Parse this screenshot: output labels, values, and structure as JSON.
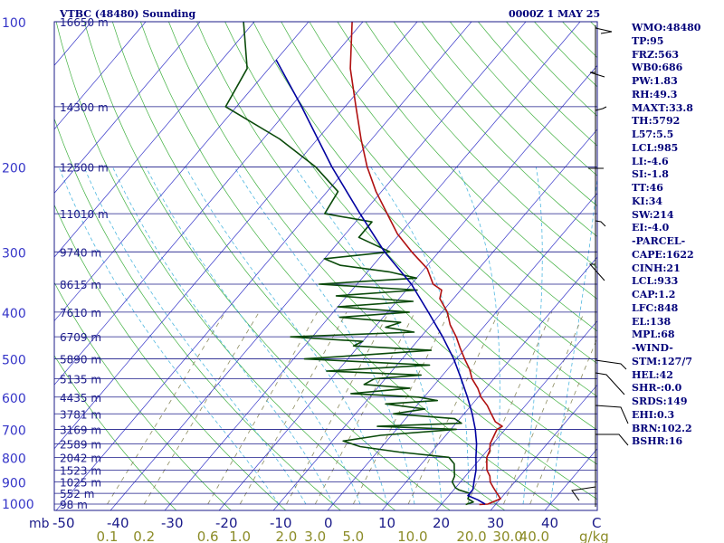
{
  "header": {
    "title": "VTBC (48480) Sounding",
    "time": "0000Z  1 MAY 25"
  },
  "chart_data": {
    "type": "skew-t",
    "pressure_ticks": [
      100,
      200,
      300,
      400,
      500,
      600,
      700,
      800,
      900,
      1000
    ],
    "pressure_unit_label": "mb",
    "temperature_ticks": [
      "-50",
      "-40",
      "-30",
      "-20",
      "-10",
      "0",
      "10",
      "20",
      "30",
      "40"
    ],
    "temperature_unit_label": "C",
    "mixing_ratio_ticks": [
      "0.1",
      "0.2",
      "0.6",
      "1.0",
      "2.0",
      "3.0",
      "5.0",
      "10.0",
      "20.0",
      "30.0",
      "40.0"
    ],
    "mixing_ratio_unit_label": "g/kg",
    "height_labels": [
      {
        "p": 100,
        "label": "16650 m"
      },
      {
        "p": 150,
        "label": "14300 m"
      },
      {
        "p": 200,
        "label": "12500 m"
      },
      {
        "p": 250,
        "label": "11010 m"
      },
      {
        "p": 300,
        "label": "9740 m"
      },
      {
        "p": 350,
        "label": "8615 m"
      },
      {
        "p": 400,
        "label": "7610 m"
      },
      {
        "p": 450,
        "label": "6709 m"
      },
      {
        "p": 500,
        "label": "5890 m"
      },
      {
        "p": 550,
        "label": "5135 m"
      },
      {
        "p": 600,
        "label": "4435 m"
      },
      {
        "p": 650,
        "label": "3781 m"
      },
      {
        "p": 700,
        "label": "3169 m"
      },
      {
        "p": 750,
        "label": "2589 m"
      },
      {
        "p": 800,
        "label": "2042 m"
      },
      {
        "p": 850,
        "label": "1523 m"
      },
      {
        "p": 900,
        "label": "1025 m"
      },
      {
        "p": 950,
        "label": "552 m"
      },
      {
        "p": 1000,
        "label": "98 m"
      }
    ],
    "series": [
      {
        "name": "temperature",
        "color": "#b01010",
        "points": [
          [
            1002,
            27
          ],
          [
            1000,
            28.5
          ],
          [
            975,
            30
          ],
          [
            950,
            28.5
          ],
          [
            925,
            27
          ],
          [
            900,
            25.5
          ],
          [
            875,
            24.5
          ],
          [
            850,
            23
          ],
          [
            825,
            22
          ],
          [
            800,
            21
          ],
          [
            775,
            20.5
          ],
          [
            750,
            19.5
          ],
          [
            725,
            19
          ],
          [
            700,
            18.5
          ],
          [
            690,
            19
          ],
          [
            675,
            17
          ],
          [
            650,
            15
          ],
          [
            625,
            13
          ],
          [
            600,
            10.5
          ],
          [
            575,
            8.5
          ],
          [
            550,
            6
          ],
          [
            525,
            4
          ],
          [
            500,
            1.5
          ],
          [
            475,
            -1
          ],
          [
            450,
            -3.5
          ],
          [
            425,
            -6.5
          ],
          [
            400,
            -9
          ],
          [
            375,
            -12.5
          ],
          [
            360,
            -13.5
          ],
          [
            350,
            -16
          ],
          [
            325,
            -19.5
          ],
          [
            300,
            -25
          ],
          [
            275,
            -30.5
          ],
          [
            250,
            -35.5
          ],
          [
            225,
            -41
          ],
          [
            200,
            -46.5
          ],
          [
            175,
            -52
          ],
          [
            150,
            -58
          ],
          [
            125,
            -65
          ],
          [
            100,
            -72
          ]
        ]
      },
      {
        "name": "dewpoint",
        "color": "#0a4a0a",
        "points": [
          [
            1002,
            24.5
          ],
          [
            990,
            25.5
          ],
          [
            975,
            24
          ],
          [
            950,
            23.5
          ],
          [
            935,
            21
          ],
          [
            925,
            20
          ],
          [
            900,
            18.5
          ],
          [
            875,
            18
          ],
          [
            850,
            17
          ],
          [
            825,
            16
          ],
          [
            800,
            14
          ],
          [
            780,
            4
          ],
          [
            760,
            -4
          ],
          [
            740,
            -8
          ],
          [
            720,
            -2
          ],
          [
            700,
            11
          ],
          [
            690,
            -4
          ],
          [
            680,
            11
          ],
          [
            665,
            9
          ],
          [
            650,
            -3
          ],
          [
            635,
            2
          ],
          [
            620,
            -6
          ],
          [
            610,
            3
          ],
          [
            600,
            -1
          ],
          [
            590,
            -14
          ],
          [
            575,
            -4
          ],
          [
            565,
            -13
          ],
          [
            550,
            -12
          ],
          [
            540,
            -4
          ],
          [
            530,
            -22
          ],
          [
            515,
            -4
          ],
          [
            500,
            -28
          ],
          [
            490,
            -17
          ],
          [
            480,
            -6
          ],
          [
            470,
            -21
          ],
          [
            460,
            -20
          ],
          [
            450,
            -34
          ],
          [
            440,
            -12
          ],
          [
            430,
            -18
          ],
          [
            420,
            -16
          ],
          [
            410,
            -28
          ],
          [
            400,
            -16
          ],
          [
            390,
            -30
          ],
          [
            380,
            -17
          ],
          [
            370,
            -32
          ],
          [
            360,
            -18
          ],
          [
            350,
            -37
          ],
          [
            340,
            -20
          ],
          [
            330,
            -26
          ],
          [
            320,
            -36
          ],
          [
            310,
            -40
          ],
          [
            300,
            -29
          ],
          [
            280,
            -37
          ],
          [
            260,
            -37
          ],
          [
            250,
            -47
          ],
          [
            225,
            -48
          ],
          [
            200,
            -56
          ],
          [
            175,
            -67
          ],
          [
            150,
            -82
          ],
          [
            125,
            -84
          ],
          [
            100,
            -92
          ]
        ]
      },
      {
        "name": "parcel",
        "color": "#0000a0",
        "points": [
          [
            1000,
            28
          ],
          [
            980,
            26
          ],
          [
            960,
            23.5
          ],
          [
            933,
            23.5
          ],
          [
            900,
            22.5
          ],
          [
            850,
            21
          ],
          [
            800,
            19
          ],
          [
            750,
            17
          ],
          [
            700,
            14.5
          ],
          [
            650,
            11.5
          ],
          [
            600,
            8
          ],
          [
            550,
            4
          ],
          [
            500,
            -0.5
          ],
          [
            450,
            -6
          ],
          [
            400,
            -12.5
          ],
          [
            350,
            -20
          ],
          [
            300,
            -30
          ],
          [
            250,
            -40.5
          ],
          [
            200,
            -53
          ],
          [
            150,
            -68
          ],
          [
            120,
            -80
          ]
        ]
      }
    ]
  },
  "indices": [
    "WMO:48480",
    "TP:95",
    "FRZ:563",
    "WB0:686",
    "PW:1.83",
    "RH:49.3",
    "MAXT:33.8",
    "TH:5792",
    "L57:5.5",
    "LCL:985",
    "LI:-4.6",
    "SI:-1.8",
    "TT:46",
    "KI:34",
    "SW:214",
    "EI:-4.0",
    "-PARCEL-",
    "CAPE:1622",
    "CINH:21",
    "LCL:933",
    "CAP:1.2",
    "LFC:848",
    "EL:138",
    "MPL:68",
    "-WIND-",
    "STM:127/7",
    "HEL:42",
    "SHR-:0.0",
    "SRDS:149",
    "EHI:0.3",
    "BRN:102.2",
    "BSHR:16"
  ],
  "colors": {
    "background": "#ffffff",
    "isobar": "#1b1b8a",
    "isotherm": "#3535c8",
    "dry_adiabat": "#40b040",
    "moist_adiabat": "#50b8e0",
    "mixing_ratio": "#8c8c60",
    "text": "#00007a",
    "wind": "#000000"
  }
}
